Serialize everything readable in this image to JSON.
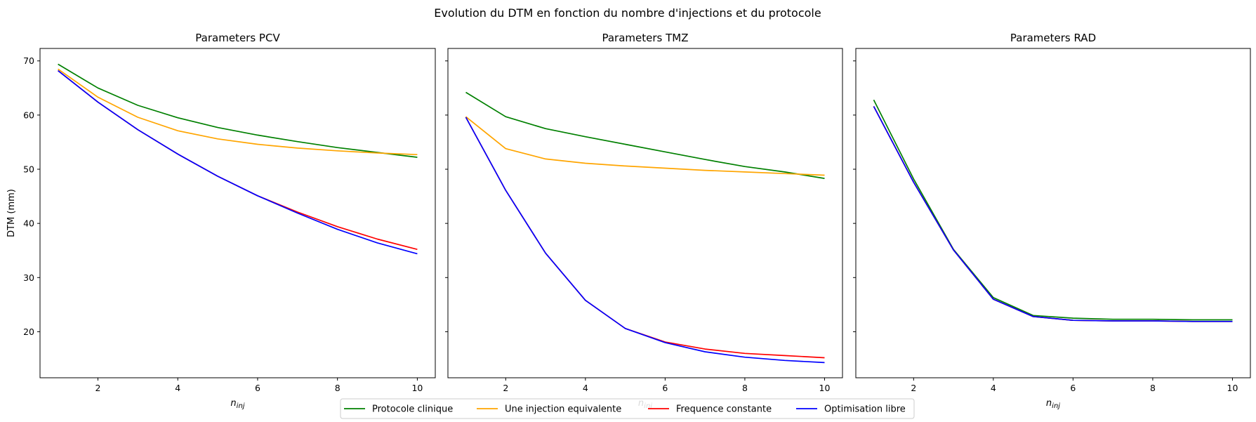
{
  "suptitle": "Evolution du DTM en fonction du nombre d'injections et du protocole",
  "legend": {
    "placement": "bottom-center",
    "entries": [
      {
        "label": "Protocole clinique",
        "color": "#008000"
      },
      {
        "label": "Une injection equivalente",
        "color": "#ffa500"
      },
      {
        "label": "Frequence constante",
        "color": "#ff0000"
      },
      {
        "label": "Optimisation libre",
        "color": "#0000ff"
      }
    ]
  },
  "chart_data": [
    {
      "type": "line",
      "title": "Parameters PCV",
      "xlabel_base": "n",
      "xlabel_sub": "inj",
      "ylabel": "DTM (mm)",
      "xlim": [
        0.55,
        10.45
      ],
      "ylim": [
        11.5,
        72.3
      ],
      "x_ticks": [
        2,
        4,
        6,
        8,
        10
      ],
      "y_ticks": [
        20,
        30,
        40,
        50,
        60,
        70
      ],
      "grid": false,
      "x": [
        1,
        2,
        3,
        4,
        5,
        6,
        7,
        8,
        9,
        10
      ],
      "series": [
        {
          "name": "Protocole clinique",
          "color": "#008000",
          "values": [
            69.4,
            65.0,
            61.8,
            59.5,
            57.7,
            56.3,
            55.1,
            54.0,
            53.1,
            52.2
          ]
        },
        {
          "name": "Une injection equivalente",
          "color": "#ffa500",
          "values": [
            68.5,
            63.3,
            59.6,
            57.1,
            55.6,
            54.6,
            53.9,
            53.4,
            53.0,
            52.7
          ]
        },
        {
          "name": "Frequence constante",
          "color": "#ff0000",
          "values": [
            68.2,
            62.4,
            57.3,
            52.8,
            48.7,
            45.1,
            42.1,
            39.4,
            37.1,
            35.2
          ]
        },
        {
          "name": "Optimisation libre",
          "color": "#0000ff",
          "values": [
            68.2,
            62.4,
            57.3,
            52.8,
            48.7,
            45.1,
            41.9,
            38.9,
            36.4,
            34.4
          ]
        }
      ]
    },
    {
      "type": "line",
      "title": "Parameters TMZ",
      "xlabel_base": "n",
      "xlabel_sub": "inj",
      "ylabel": "",
      "xlim": [
        0.55,
        10.45
      ],
      "ylim": [
        11.5,
        72.3
      ],
      "x_ticks": [
        2,
        4,
        6,
        8,
        10
      ],
      "y_ticks": [
        20,
        30,
        40,
        50,
        60,
        70
      ],
      "grid": false,
      "x": [
        1,
        2,
        3,
        4,
        5,
        6,
        7,
        8,
        9,
        10
      ],
      "series": [
        {
          "name": "Protocole clinique",
          "color": "#008000",
          "values": [
            64.2,
            59.7,
            57.5,
            56.0,
            54.6,
            53.2,
            51.8,
            50.5,
            49.5,
            48.3
          ]
        },
        {
          "name": "Une injection equivalente",
          "color": "#ffa500",
          "values": [
            59.7,
            53.8,
            51.9,
            51.1,
            50.6,
            50.2,
            49.8,
            49.5,
            49.2,
            48.9
          ]
        },
        {
          "name": "Frequence constante",
          "color": "#ff0000",
          "values": [
            59.6,
            46.1,
            34.5,
            25.8,
            20.6,
            18.1,
            16.8,
            16.0,
            15.6,
            15.2
          ]
        },
        {
          "name": "Optimisation libre",
          "color": "#0000ff",
          "values": [
            59.6,
            46.1,
            34.5,
            25.8,
            20.6,
            18.0,
            16.3,
            15.3,
            14.7,
            14.3
          ]
        }
      ]
    },
    {
      "type": "line",
      "title": "Parameters RAD",
      "xlabel_base": "n",
      "xlabel_sub": "inj",
      "ylabel": "",
      "xlim": [
        0.55,
        10.45
      ],
      "ylim": [
        11.5,
        72.3
      ],
      "x_ticks": [
        2,
        4,
        6,
        8,
        10
      ],
      "y_ticks": [
        20,
        30,
        40,
        50,
        60,
        70
      ],
      "grid": false,
      "x": [
        1,
        2,
        3,
        4,
        5,
        6,
        7,
        8,
        9,
        10
      ],
      "series": [
        {
          "name": "Protocole clinique",
          "color": "#008000",
          "values": [
            62.8,
            48.2,
            35.2,
            26.3,
            23.0,
            22.5,
            22.3,
            22.3,
            22.2,
            22.2
          ]
        },
        {
          "name": "Une injection equivalente",
          "color": "#ffa500",
          "values": [
            61.6,
            47.6,
            35.1,
            26.0,
            22.8,
            22.1,
            22.0,
            22.0,
            21.9,
            21.9
          ]
        },
        {
          "name": "Frequence constante",
          "color": "#ff0000",
          "values": [
            61.6,
            47.6,
            35.1,
            26.0,
            22.8,
            22.1,
            22.0,
            22.0,
            21.9,
            21.9
          ]
        },
        {
          "name": "Optimisation libre",
          "color": "#0000ff",
          "values": [
            61.6,
            47.6,
            35.1,
            26.0,
            22.8,
            22.1,
            22.0,
            22.0,
            21.9,
            21.9
          ]
        }
      ]
    }
  ]
}
